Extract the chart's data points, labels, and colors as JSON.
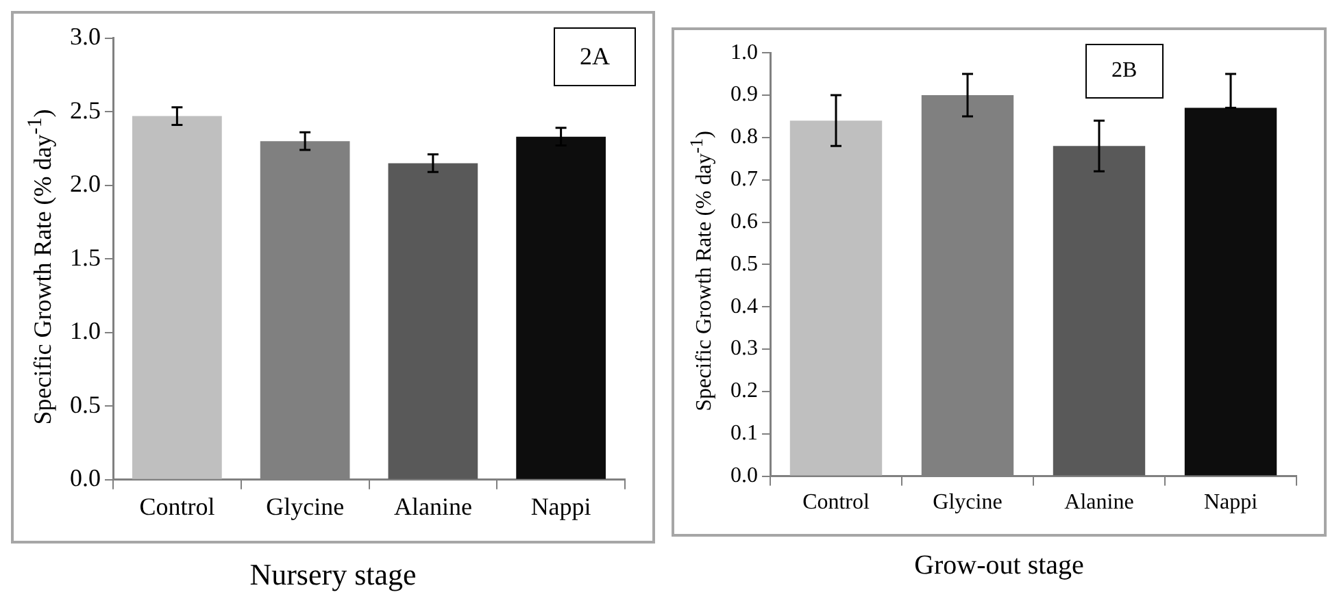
{
  "chart_data": [
    {
      "type": "bar",
      "categories": [
        "Control",
        "Glycine",
        "Alanine",
        "Nappi"
      ],
      "values": [
        2.47,
        2.3,
        2.15,
        2.33
      ],
      "errors": [
        0.06,
        0.06,
        0.06,
        0.06
      ],
      "colors": [
        "#bfbfbf",
        "#808080",
        "#595959",
        "#0d0d0d"
      ],
      "ylim": [
        0,
        3
      ],
      "yticks": [
        {
          "value": 0,
          "label": "0.0"
        },
        {
          "value": 0.5,
          "label": "0.5"
        },
        {
          "value": 1,
          "label": "1.0"
        },
        {
          "value": 1.5,
          "label": "1.5"
        },
        {
          "value": 2,
          "label": "2.0"
        },
        {
          "value": 2.5,
          "label": "2.5"
        },
        {
          "value": 3,
          "label": "3.0"
        }
      ],
      "ylabel": "Specific Growth Rate (% day$^{-1}$)",
      "xlabel": "Nursery stage",
      "annotations": [
        "2A"
      ],
      "grid": false,
      "legend": false
    },
    {
      "type": "bar",
      "categories": [
        "Control",
        "Glycine",
        "Alanine",
        "Nappi"
      ],
      "values": [
        0.84,
        0.9,
        0.78,
        0.87
      ],
      "errors": [
        0.06,
        0.05,
        0.06,
        [
          0.87,
          0.95
        ]
      ],
      "colors": [
        "#bfbfbf",
        "#808080",
        "#595959",
        "#0d0d0d"
      ],
      "ylim": [
        0,
        1
      ],
      "yticks": [
        {
          "value": 0,
          "label": "0.0"
        },
        {
          "value": 0.1,
          "label": "0.1"
        },
        {
          "value": 0.2,
          "label": "0.2"
        },
        {
          "value": 0.3,
          "label": "0.3"
        },
        {
          "value": 0.4,
          "label": "0.4"
        },
        {
          "value": 0.5,
          "label": "0.5"
        },
        {
          "value": 0.6,
          "label": "0.6"
        },
        {
          "value": 0.7,
          "label": "0.7"
        },
        {
          "value": 0.8,
          "label": "0.8"
        },
        {
          "value": 0.9,
          "label": "0.9"
        },
        {
          "value": 1,
          "label": "1.0"
        }
      ],
      "ylabel": "Specific Growth Rate (% day$^{-1}$)",
      "xlabel": "Grow-out stage",
      "annotations": [
        "2B"
      ],
      "grid": false,
      "legend": false
    }
  ]
}
